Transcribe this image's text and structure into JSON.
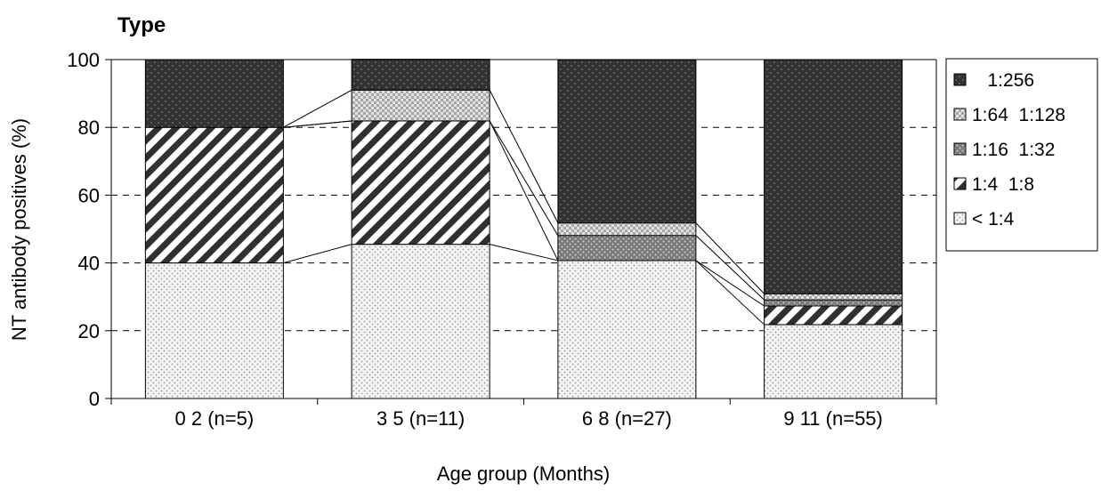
{
  "chart_data": {
    "type": "bar",
    "stacked": true,
    "title": "Type",
    "xlabel": "Age group (Months)",
    "ylabel": "NT antibody positives (%)",
    "ylim": [
      0,
      100
    ],
    "yticks": [
      0,
      20,
      40,
      60,
      80,
      100
    ],
    "gridlines": "dashed at 20, 40, 60, 80",
    "legend_position": "right",
    "categories": [
      "0  2 (n=5)",
      "3  5 (n=11)",
      "6  8 (n=27)",
      "9  11 (n=55)"
    ],
    "series": [
      {
        "name": "< 1:4",
        "values": [
          40,
          45.5,
          40.7,
          21.8
        ],
        "color": "#e6e6e6",
        "pattern": "light-dots"
      },
      {
        "name": "1:4  1:8",
        "values": [
          40,
          36.4,
          0,
          5.5
        ],
        "color": "#333333",
        "pattern": "diagonal-stripes"
      },
      {
        "name": "1:16  1:32",
        "values": [
          0,
          0,
          7.4,
          1.8
        ],
        "color": "#8c8c8c",
        "pattern": "medium-dots"
      },
      {
        "name": "1:64  1:128",
        "values": [
          0,
          9.1,
          3.7,
          1.8
        ],
        "color": "#c8c8c8",
        "pattern": "checker-dots"
      },
      {
        "name": "   1:256",
        "values": [
          20,
          9.1,
          48.1,
          69.1
        ],
        "color": "#333333",
        "pattern": "dark-dots"
      }
    ],
    "connector_lines": true
  }
}
